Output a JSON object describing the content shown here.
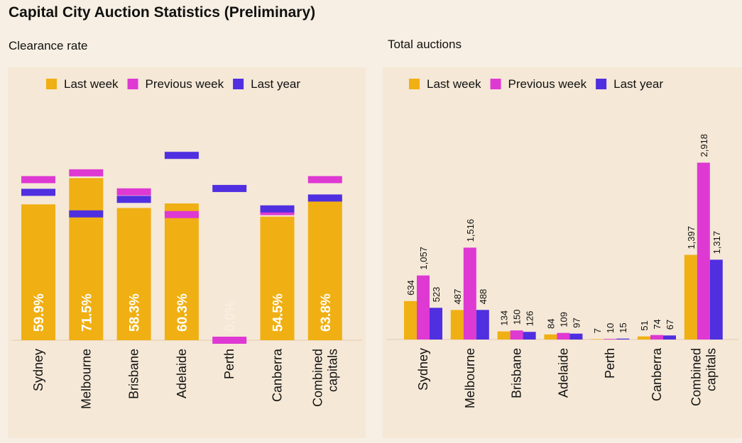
{
  "title": "Capital City Auction Statistics (Preliminary)",
  "colors": {
    "last_week": "#f0b013",
    "previous_week": "#de39d2",
    "last_year": "#4f2fe0"
  },
  "chart_data": [
    {
      "type": "bar",
      "title": "Clearance rate",
      "categories": [
        "Sydney",
        "Melbourne",
        "Brisbane",
        "Adelaide",
        "Perth",
        "Canberra",
        [
          "Combined",
          "capitals"
        ]
      ],
      "series": [
        {
          "name": "Last week",
          "values": [
            59.9,
            71.5,
            58.3,
            60.3,
            0.0,
            54.5,
            63.8
          ],
          "labels": [
            "59.9%",
            "71.5%",
            "58.3%",
            "60.3%",
            "0.0%",
            "54.5%",
            "63.8%"
          ]
        },
        {
          "name": "Previous week",
          "values": [
            70.8,
            73.8,
            65.4,
            55.4,
            0.0,
            56.7,
            70.8
          ]
        },
        {
          "name": "Last year",
          "values": [
            65.2,
            55.7,
            62.1,
            81.5,
            66.9,
            57.9,
            62.7
          ]
        }
      ],
      "ylim": [
        0,
        100
      ],
      "legend": "top"
    },
    {
      "type": "bar",
      "title": "Total auctions",
      "categories": [
        "Sydney",
        "Melbourne",
        "Brisbane",
        "Adelaide",
        "Perth",
        "Canberra",
        [
          "Combined",
          "capitals"
        ]
      ],
      "series": [
        {
          "name": "Last week",
          "values": [
            634,
            487,
            134,
            84,
            7,
            51,
            1397
          ],
          "labels": [
            "634",
            "487",
            "134",
            "84",
            "7",
            "51",
            "1,397"
          ]
        },
        {
          "name": "Previous week",
          "values": [
            1057,
            1516,
            150,
            109,
            10,
            74,
            2918
          ],
          "labels": [
            "1,057",
            "1,516",
            "150",
            "109",
            "10",
            "74",
            "2,918"
          ]
        },
        {
          "name": "Last year",
          "values": [
            523,
            488,
            126,
            97,
            15,
            67,
            1317
          ],
          "labels": [
            "523",
            "488",
            "126",
            "97",
            "15",
            "67",
            "1,317"
          ]
        }
      ],
      "ylim": [
        0,
        3450
      ],
      "legend": "top"
    }
  ]
}
